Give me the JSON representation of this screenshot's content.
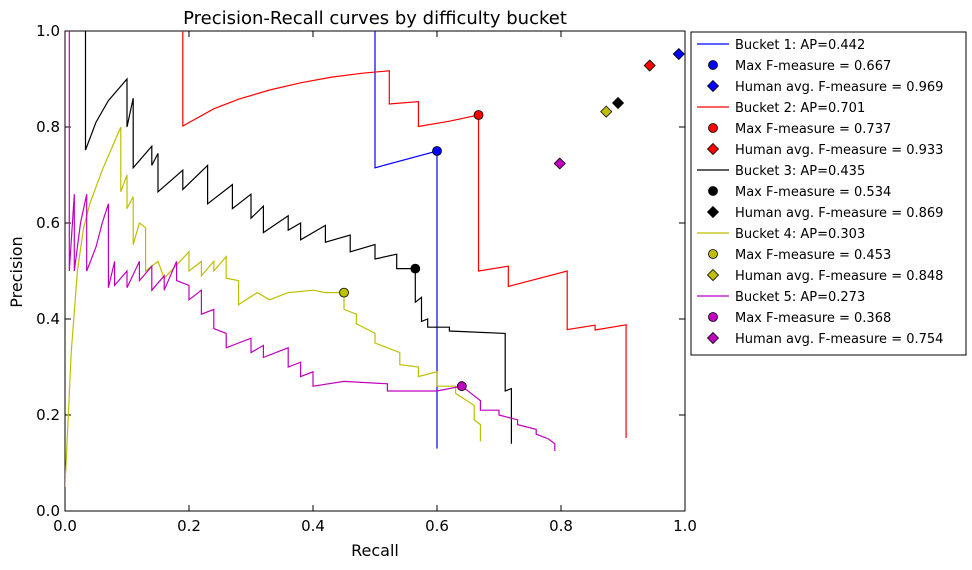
{
  "chart_data": {
    "type": "line",
    "title": "Precision-Recall curves by difficulty bucket",
    "xlabel": "Recall",
    "ylabel": "Precision",
    "xlim": [
      0,
      1
    ],
    "ylim": [
      0,
      1
    ],
    "xticks": [
      "0.0",
      "0.2",
      "0.4",
      "0.6",
      "0.8",
      "1.0"
    ],
    "yticks": [
      "0.0",
      "0.2",
      "0.4",
      "0.6",
      "0.8",
      "1.0"
    ],
    "grid": false,
    "legend_position": "outside-right",
    "series": [
      {
        "name": "Bucket 1: AP=0.442",
        "color": "#0000ff",
        "points": [
          [
            0.5,
            1.0
          ],
          [
            0.5,
            0.715
          ],
          [
            0.6,
            0.75
          ],
          [
            0.6,
            0.13
          ]
        ],
        "max_f": {
          "label": "Max F-measure = 0.667",
          "x": 0.6,
          "y": 0.75
        },
        "human": {
          "label": "Human avg. F-measure = 0.969",
          "x": 0.99,
          "y": 0.952
        }
      },
      {
        "name": "Bucket 2: AP=0.701",
        "color": "#ff0000",
        "points": [
          [
            0.19,
            1.0
          ],
          [
            0.19,
            0.802
          ],
          [
            0.24,
            0.838
          ],
          [
            0.28,
            0.858
          ],
          [
            0.33,
            0.877
          ],
          [
            0.38,
            0.892
          ],
          [
            0.43,
            0.904
          ],
          [
            0.48,
            0.912
          ],
          [
            0.523,
            0.917
          ],
          [
            0.523,
            0.848
          ],
          [
            0.57,
            0.853
          ],
          [
            0.57,
            0.801
          ],
          [
            0.62,
            0.812
          ],
          [
            0.667,
            0.825
          ],
          [
            0.667,
            0.5
          ],
          [
            0.715,
            0.51
          ],
          [
            0.715,
            0.468
          ],
          [
            0.81,
            0.5
          ],
          [
            0.81,
            0.378
          ],
          [
            0.855,
            0.387
          ],
          [
            0.855,
            0.377
          ],
          [
            0.905,
            0.388
          ],
          [
            0.905,
            0.152
          ]
        ],
        "max_f": {
          "label": "Max F-measure = 0.737",
          "x": 0.667,
          "y": 0.825
        },
        "human": {
          "label": "Human avg. F-measure = 0.933",
          "x": 0.943,
          "y": 0.928
        }
      },
      {
        "name": "Bucket 3: AP=0.435",
        "color": "#000000",
        "points": [
          [
            0.033,
            1.0
          ],
          [
            0.033,
            0.752
          ],
          [
            0.05,
            0.81
          ],
          [
            0.07,
            0.855
          ],
          [
            0.1,
            0.9
          ],
          [
            0.1,
            0.8
          ],
          [
            0.11,
            0.86
          ],
          [
            0.11,
            0.715
          ],
          [
            0.14,
            0.76
          ],
          [
            0.14,
            0.72
          ],
          [
            0.15,
            0.745
          ],
          [
            0.15,
            0.665
          ],
          [
            0.19,
            0.71
          ],
          [
            0.19,
            0.67
          ],
          [
            0.23,
            0.72
          ],
          [
            0.23,
            0.64
          ],
          [
            0.27,
            0.68
          ],
          [
            0.27,
            0.63
          ],
          [
            0.3,
            0.66
          ],
          [
            0.3,
            0.61
          ],
          [
            0.32,
            0.635
          ],
          [
            0.32,
            0.58
          ],
          [
            0.36,
            0.615
          ],
          [
            0.36,
            0.585
          ],
          [
            0.38,
            0.6
          ],
          [
            0.38,
            0.565
          ],
          [
            0.42,
            0.595
          ],
          [
            0.42,
            0.56
          ],
          [
            0.46,
            0.575
          ],
          [
            0.46,
            0.54
          ],
          [
            0.5,
            0.555
          ],
          [
            0.5,
            0.525
          ],
          [
            0.535,
            0.535
          ],
          [
            0.535,
            0.505
          ],
          [
            0.565,
            0.505
          ],
          [
            0.565,
            0.435
          ],
          [
            0.575,
            0.445
          ],
          [
            0.575,
            0.395
          ],
          [
            0.585,
            0.4
          ],
          [
            0.585,
            0.383
          ],
          [
            0.62,
            0.383
          ],
          [
            0.62,
            0.375
          ],
          [
            0.71,
            0.37
          ],
          [
            0.71,
            0.25
          ],
          [
            0.72,
            0.255
          ],
          [
            0.72,
            0.14
          ]
        ],
        "max_f": {
          "label": "Max F-measure = 0.534",
          "x": 0.565,
          "y": 0.505
        },
        "human": {
          "label": "Human avg. F-measure = 0.869",
          "x": 0.892,
          "y": 0.85
        }
      },
      {
        "name": "Bucket 4: AP=0.303",
        "color": "#bfbf00",
        "points": [
          [
            0.0,
            0.05
          ],
          [
            0.01,
            0.33
          ],
          [
            0.02,
            0.5
          ],
          [
            0.03,
            0.59
          ],
          [
            0.04,
            0.64
          ],
          [
            0.06,
            0.71
          ],
          [
            0.08,
            0.77
          ],
          [
            0.09,
            0.8
          ],
          [
            0.09,
            0.665
          ],
          [
            0.1,
            0.7
          ],
          [
            0.1,
            0.63
          ],
          [
            0.11,
            0.655
          ],
          [
            0.11,
            0.555
          ],
          [
            0.12,
            0.6
          ],
          [
            0.13,
            0.59
          ],
          [
            0.13,
            0.5
          ],
          [
            0.15,
            0.52
          ],
          [
            0.16,
            0.485
          ],
          [
            0.2,
            0.54
          ],
          [
            0.2,
            0.5
          ],
          [
            0.22,
            0.52
          ],
          [
            0.22,
            0.49
          ],
          [
            0.24,
            0.52
          ],
          [
            0.24,
            0.5
          ],
          [
            0.26,
            0.53
          ],
          [
            0.26,
            0.485
          ],
          [
            0.28,
            0.48
          ],
          [
            0.28,
            0.43
          ],
          [
            0.31,
            0.455
          ],
          [
            0.33,
            0.44
          ],
          [
            0.36,
            0.455
          ],
          [
            0.4,
            0.46
          ],
          [
            0.42,
            0.455
          ],
          [
            0.45,
            0.455
          ],
          [
            0.45,
            0.42
          ],
          [
            0.47,
            0.41
          ],
          [
            0.47,
            0.39
          ],
          [
            0.5,
            0.37
          ],
          [
            0.5,
            0.35
          ],
          [
            0.54,
            0.33
          ],
          [
            0.54,
            0.305
          ],
          [
            0.57,
            0.3
          ],
          [
            0.57,
            0.28
          ],
          [
            0.6,
            0.29
          ],
          [
            0.6,
            0.26
          ],
          [
            0.63,
            0.26
          ],
          [
            0.63,
            0.245
          ],
          [
            0.66,
            0.22
          ],
          [
            0.66,
            0.19
          ],
          [
            0.67,
            0.18
          ],
          [
            0.67,
            0.145
          ]
        ],
        "max_f": {
          "label": "Max F-measure = 0.453",
          "x": 0.45,
          "y": 0.455
        },
        "human": {
          "label": "Human avg. F-measure = 0.848",
          "x": 0.873,
          "y": 0.832
        }
      },
      {
        "name": "Bucket 5: AP=0.273",
        "color": "#bf00bf",
        "points": [
          [
            0.007,
            1.0
          ],
          [
            0.007,
            0.5
          ],
          [
            0.015,
            0.66
          ],
          [
            0.015,
            0.5
          ],
          [
            0.025,
            0.6
          ],
          [
            0.035,
            0.66
          ],
          [
            0.035,
            0.5
          ],
          [
            0.05,
            0.55
          ],
          [
            0.06,
            0.6
          ],
          [
            0.07,
            0.64
          ],
          [
            0.07,
            0.465
          ],
          [
            0.08,
            0.52
          ],
          [
            0.08,
            0.47
          ],
          [
            0.1,
            0.5
          ],
          [
            0.1,
            0.465
          ],
          [
            0.12,
            0.52
          ],
          [
            0.12,
            0.48
          ],
          [
            0.14,
            0.51
          ],
          [
            0.14,
            0.46
          ],
          [
            0.16,
            0.49
          ],
          [
            0.16,
            0.46
          ],
          [
            0.18,
            0.52
          ],
          [
            0.18,
            0.48
          ],
          [
            0.2,
            0.47
          ],
          [
            0.2,
            0.44
          ],
          [
            0.22,
            0.46
          ],
          [
            0.22,
            0.41
          ],
          [
            0.24,
            0.42
          ],
          [
            0.24,
            0.38
          ],
          [
            0.26,
            0.37
          ],
          [
            0.26,
            0.34
          ],
          [
            0.3,
            0.36
          ],
          [
            0.3,
            0.33
          ],
          [
            0.32,
            0.345
          ],
          [
            0.32,
            0.32
          ],
          [
            0.36,
            0.34
          ],
          [
            0.36,
            0.3
          ],
          [
            0.38,
            0.31
          ],
          [
            0.38,
            0.28
          ],
          [
            0.4,
            0.29
          ],
          [
            0.4,
            0.26
          ],
          [
            0.45,
            0.27
          ],
          [
            0.52,
            0.265
          ],
          [
            0.52,
            0.25
          ],
          [
            0.6,
            0.25
          ],
          [
            0.64,
            0.26
          ],
          [
            0.66,
            0.24
          ],
          [
            0.67,
            0.23
          ],
          [
            0.67,
            0.21
          ],
          [
            0.7,
            0.21
          ],
          [
            0.7,
            0.2
          ],
          [
            0.73,
            0.19
          ],
          [
            0.73,
            0.18
          ],
          [
            0.76,
            0.17
          ],
          [
            0.76,
            0.16
          ],
          [
            0.78,
            0.15
          ],
          [
            0.79,
            0.14
          ],
          [
            0.79,
            0.125
          ]
        ],
        "max_f": {
          "label": "Max F-measure = 0.368",
          "x": 0.64,
          "y": 0.26
        },
        "human": {
          "label": "Human avg. F-measure = 0.754",
          "x": 0.798,
          "y": 0.724
        }
      }
    ]
  }
}
